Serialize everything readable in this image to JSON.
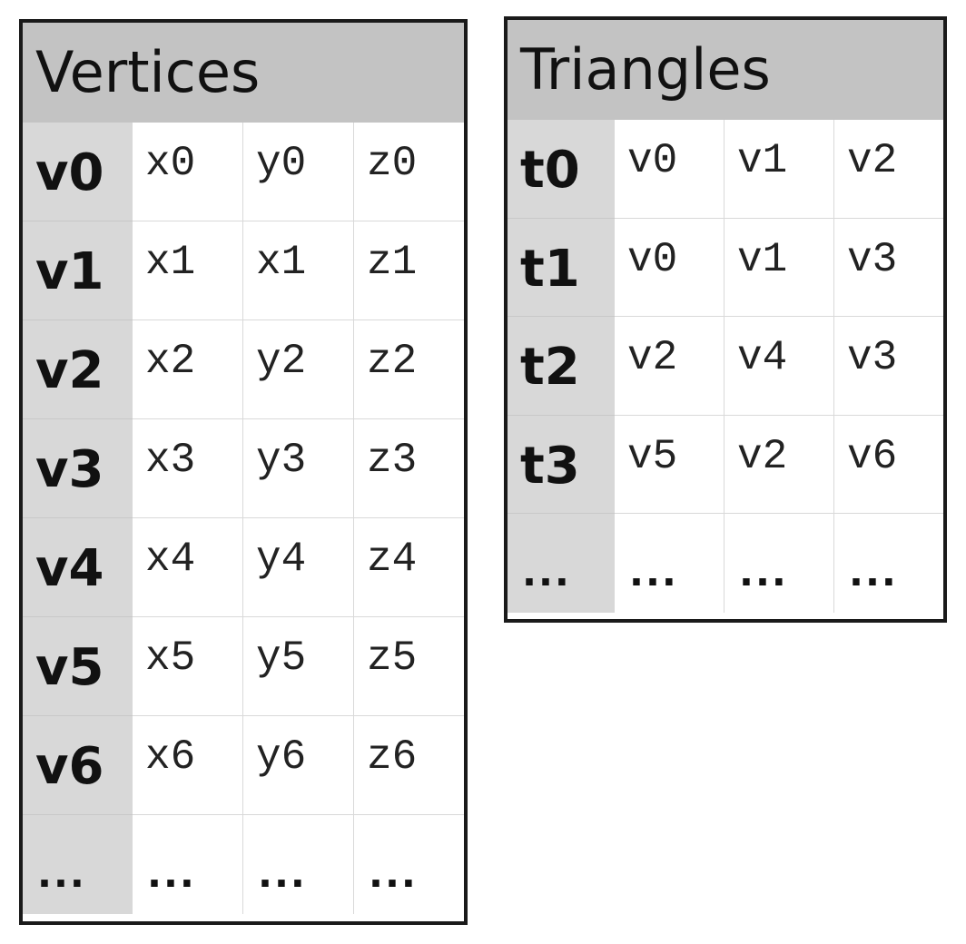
{
  "vertices": {
    "title": "Vertices",
    "rows": [
      {
        "label": "v0",
        "values": [
          "x0",
          "y0",
          "z0"
        ]
      },
      {
        "label": "v1",
        "values": [
          "x1",
          "x1",
          "z1"
        ]
      },
      {
        "label": "v2",
        "values": [
          "x2",
          "y2",
          "z2"
        ]
      },
      {
        "label": "v3",
        "values": [
          "x3",
          "y3",
          "z3"
        ]
      },
      {
        "label": "v4",
        "values": [
          "x4",
          "y4",
          "z4"
        ]
      },
      {
        "label": "v5",
        "values": [
          "x5",
          "y5",
          "z5"
        ]
      },
      {
        "label": "v6",
        "values": [
          "x6",
          "y6",
          "z6"
        ]
      },
      {
        "label": "...",
        "values": [
          "...",
          "...",
          "..."
        ]
      }
    ]
  },
  "triangles": {
    "title": "Triangles",
    "rows": [
      {
        "label": "t0",
        "values": [
          "v0",
          "v1",
          "v2"
        ]
      },
      {
        "label": "t1",
        "values": [
          "v0",
          "v1",
          "v3"
        ]
      },
      {
        "label": "t2",
        "values": [
          "v2",
          "v4",
          "v3"
        ]
      },
      {
        "label": "t3",
        "values": [
          "v5",
          "v2",
          "v6"
        ]
      },
      {
        "label": "...",
        "values": [
          "...",
          "...",
          "..."
        ]
      }
    ]
  },
  "colors": {
    "header_bg": "#c3c3c3",
    "label_col_bg": "#d8d8d8",
    "border": "#1a1a1a",
    "gridline": "#d9d9d9"
  }
}
